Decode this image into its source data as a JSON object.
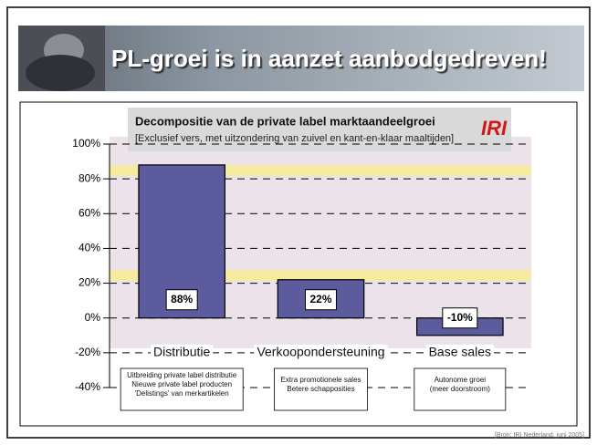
{
  "header": {
    "title": "PL-groei is in aanzet aanbodgedreven!"
  },
  "chart_data": {
    "type": "bar",
    "title": "Decompositie van de private label marktaandeelgroei",
    "subtitle": "[Exclusief vers, met uitzondering van zuivel en kant-en-klaar maaltijden]",
    "logo": "IRI",
    "categories": [
      "Distributie",
      "Verkoopondersteuning",
      "Base sales"
    ],
    "values": [
      88,
      22,
      -10
    ],
    "value_labels": [
      "88%",
      "22%",
      "-10%"
    ],
    "color": "#5b5b9e",
    "ylim": [
      -40,
      100
    ],
    "yticks": [
      {
        "value": -40,
        "label": "-40%"
      },
      {
        "value": -20,
        "label": "-20%"
      },
      {
        "value": 0,
        "label": "0%"
      },
      {
        "value": 20,
        "label": "20%"
      },
      {
        "value": 40,
        "label": "40%"
      },
      {
        "value": 60,
        "label": "60%"
      },
      {
        "value": 80,
        "label": "80%"
      },
      {
        "value": 100,
        "label": "100%"
      }
    ],
    "grid": true,
    "annotations": [
      [
        "Uitbreiding private label distributie",
        "Nieuwe private label producten",
        "'Delistings' van merkartikelen"
      ],
      [
        "Extra promotionele sales",
        "Betere schapposities"
      ],
      [
        "Autonome groei",
        "(meer doorstroom)"
      ]
    ]
  },
  "source": "[Bron: IRI Nederland, juni 2005]"
}
